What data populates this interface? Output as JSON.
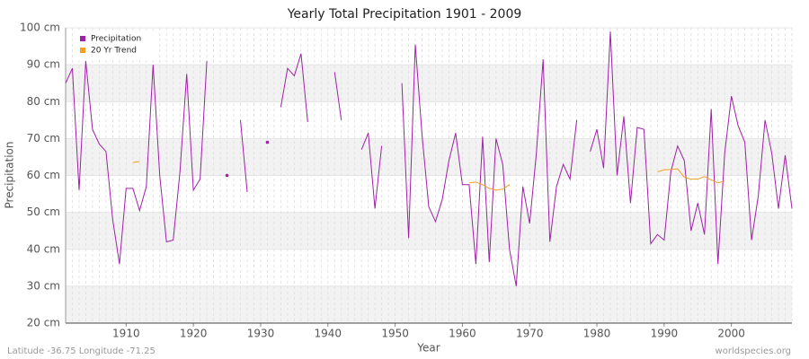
{
  "chart_data": {
    "type": "line",
    "title": "Yearly Total Precipitation 1901 - 2009",
    "x_label": "Year",
    "y_label": "Precipitation",
    "footer_left": "Latitude -36.75 Longitude -71.25",
    "footer_right": "worldspecies.org",
    "legend_position": "upper left",
    "grid": true,
    "x": [
      1901,
      1902,
      1903,
      1904,
      1905,
      1906,
      1907,
      1908,
      1909,
      1910,
      1911,
      1912,
      1913,
      1914,
      1915,
      1916,
      1917,
      1918,
      1919,
      1920,
      1921,
      1922,
      1923,
      1924,
      1925,
      1926,
      1927,
      1928,
      1929,
      1930,
      1931,
      1932,
      1933,
      1934,
      1935,
      1936,
      1937,
      1938,
      1939,
      1940,
      1941,
      1942,
      1943,
      1944,
      1945,
      1946,
      1947,
      1948,
      1949,
      1950,
      1951,
      1952,
      1953,
      1954,
      1955,
      1956,
      1957,
      1958,
      1959,
      1960,
      1961,
      1962,
      1963,
      1964,
      1965,
      1966,
      1967,
      1968,
      1969,
      1970,
      1971,
      1972,
      1973,
      1974,
      1975,
      1976,
      1977,
      1978,
      1979,
      1980,
      1981,
      1982,
      1983,
      1984,
      1985,
      1986,
      1987,
      1988,
      1989,
      1990,
      1991,
      1992,
      1993,
      1994,
      1995,
      1996,
      1997,
      1998,
      1999,
      2000,
      2001,
      2002,
      2003,
      2004,
      2005,
      2006,
      2007,
      2008,
      2009
    ],
    "series": [
      {
        "name": "Precipitation",
        "color": "#a020a8",
        "values": [
          85,
          89,
          56,
          91,
          72.5,
          68.5,
          66.5,
          48,
          36,
          56.5,
          56.5,
          50.5,
          57,
          90,
          60,
          42,
          42.5,
          61,
          87.5,
          56,
          59,
          91,
          null,
          null,
          60,
          null,
          75,
          55.5,
          null,
          null,
          69,
          null,
          78.5,
          89,
          87,
          93,
          74.5,
          null,
          null,
          null,
          88,
          75,
          null,
          null,
          67,
          71.5,
          51,
          68,
          null,
          null,
          85,
          43,
          95.5,
          71,
          51.5,
          47.5,
          53.5,
          64,
          71.5,
          57.5,
          57.5,
          36,
          70.5,
          36.5,
          70,
          63,
          40,
          30,
          57,
          47,
          66,
          91.5,
          42,
          57,
          63,
          59,
          75,
          null,
          66.5,
          72.5,
          62,
          99,
          60,
          76,
          52.5,
          73,
          72.5,
          41.5,
          44,
          42.5,
          61,
          68,
          64,
          45,
          52.5,
          44,
          78,
          36,
          66,
          81.5,
          73.5,
          69,
          42.5,
          54.5,
          75,
          66,
          51,
          65.5,
          51
        ]
      },
      {
        "name": "20 Yr Trend",
        "color": "#f5a020",
        "values": [
          null,
          null,
          null,
          null,
          null,
          null,
          null,
          null,
          null,
          null,
          63.5,
          63.8,
          null,
          null,
          null,
          null,
          null,
          null,
          null,
          null,
          null,
          null,
          null,
          null,
          null,
          null,
          null,
          null,
          null,
          null,
          null,
          null,
          null,
          null,
          null,
          null,
          null,
          null,
          null,
          null,
          null,
          null,
          null,
          null,
          null,
          null,
          null,
          null,
          null,
          null,
          null,
          null,
          null,
          null,
          null,
          null,
          null,
          null,
          null,
          null,
          58,
          58.2,
          57.5,
          56.5,
          56,
          56.3,
          57.5,
          null,
          null,
          null,
          null,
          null,
          null,
          null,
          null,
          null,
          null,
          null,
          null,
          null,
          null,
          null,
          null,
          null,
          null,
          null,
          null,
          null,
          61,
          61.5,
          61.6,
          61.8,
          59.5,
          59,
          59,
          59.7,
          58.8,
          58,
          58.5,
          null,
          null,
          null,
          null,
          null,
          null,
          null,
          null,
          null,
          null
        ]
      }
    ],
    "xlim": [
      1901,
      2009
    ],
    "xticks": [
      1910,
      1920,
      1930,
      1940,
      1950,
      1960,
      1970,
      1980,
      1990,
      2000
    ],
    "ylim": [
      20,
      100
    ],
    "yticks": [
      {
        "value": 20,
        "label": "20 cm"
      },
      {
        "value": 30,
        "label": "30 cm"
      },
      {
        "value": 40,
        "label": "40 cm"
      },
      {
        "value": 50,
        "label": "50 cm"
      },
      {
        "value": 60,
        "label": "60 cm"
      },
      {
        "value": 70,
        "label": "70 cm"
      },
      {
        "value": 80,
        "label": "80 cm"
      },
      {
        "value": 90,
        "label": "90 cm"
      },
      {
        "value": 100,
        "label": "100 cm"
      }
    ]
  }
}
